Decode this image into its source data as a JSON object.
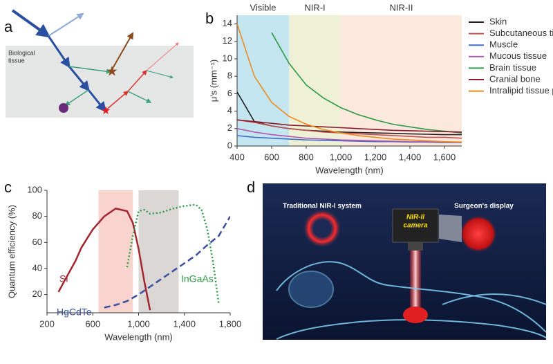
{
  "panel_a": {
    "label": "a",
    "tissue_text": [
      "Biological",
      "tissue"
    ]
  },
  "panel_d": {
    "label": "d",
    "left_text": "Traditional NIR-I system",
    "right_text": "Surgeon's display",
    "camera_text": [
      "NIR-II",
      "camera"
    ]
  },
  "chart_data": [
    {
      "type": "line",
      "panel": "b",
      "x_label": "Wavelength (nm)",
      "y_label": "μ′s (mm⁻¹)",
      "xlim": [
        400,
        1700
      ],
      "ylim": [
        0,
        15
      ],
      "xticks": [
        400,
        600,
        800,
        {
          "value": 1000,
          "label": "1,000"
        },
        {
          "value": 1200,
          "label": "1,200"
        },
        {
          "value": 1400,
          "label": "1,400"
        },
        {
          "value": 1600,
          "label": "1,600"
        }
      ],
      "yticks": [
        0,
        2,
        4,
        6,
        8,
        10,
        12,
        14
      ],
      "legend": "outside-right",
      "regions": [
        {
          "label": "Visible",
          "range": [
            400,
            700
          ],
          "color": "#c4e6f1"
        },
        {
          "label": "NIR-I",
          "range": [
            700,
            1000
          ],
          "color": "#eef1d6"
        },
        {
          "label": "NIR-II",
          "range": [
            1000,
            1700
          ],
          "color": "#fbe9de"
        }
      ],
      "x": [
        400,
        500,
        600,
        700,
        800,
        900,
        1000,
        1100,
        1200,
        1300,
        1400,
        1500,
        1600,
        1700
      ],
      "series": [
        {
          "name": "Skin",
          "color": "#231f20",
          "values": [
            6.2,
            2.8,
            2.3,
            2.0,
            1.8,
            1.7,
            1.6,
            1.55,
            1.5,
            1.45,
            1.4,
            1.35,
            1.3,
            1.3
          ]
        },
        {
          "name": "Subcutaneous tissue",
          "color": "#c0504d",
          "values": [
            3.0,
            2.7,
            2.3,
            2.0,
            1.8,
            1.6,
            1.5,
            1.4,
            1.3,
            1.2,
            1.1,
            1.0,
            1.0,
            0.9
          ]
        },
        {
          "name": "Muscle",
          "color": "#3f6fc0",
          "values": [
            1.2,
            1.0,
            0.9,
            0.8,
            0.7,
            0.65,
            0.6,
            0.55,
            0.5,
            0.5,
            0.45,
            0.45,
            0.4,
            0.4
          ]
        },
        {
          "name": "Mucous tissue",
          "color": "#b05ab0",
          "values": [
            2.0,
            1.6,
            1.3,
            1.1,
            0.9,
            0.8,
            0.7,
            0.65,
            0.6,
            0.55,
            0.5,
            0.5,
            0.45,
            0.45
          ]
        },
        {
          "name": "Brain tissue",
          "color": "#2e9a48",
          "values": [
            null,
            null,
            13,
            9.5,
            7,
            5.5,
            4.4,
            3.6,
            3.0,
            2.5,
            2.2,
            1.9,
            1.7,
            1.5
          ]
        },
        {
          "name": "Cranial bone",
          "color": "#8b1a2b",
          "values": [
            3.0,
            2.8,
            2.6,
            2.4,
            2.3,
            2.2,
            2.1,
            2.0,
            1.9,
            1.8,
            1.75,
            1.7,
            1.65,
            1.6
          ]
        },
        {
          "name": "Intralipid tissue phantom",
          "color": "#ef8a1c",
          "values": [
            14,
            8.0,
            5.0,
            3.4,
            2.5,
            1.9,
            1.5,
            1.2,
            1.0,
            0.8,
            0.7,
            0.6,
            0.5,
            0.45
          ]
        }
      ]
    },
    {
      "type": "line",
      "panel": "c",
      "x_label": "Wavelength (nm)",
      "y_label": "Quantum efficiency (%)",
      "xlim": [
        200,
        1800
      ],
      "ylim": [
        6,
        100
      ],
      "xticks": [
        200,
        600,
        {
          "value": 1000,
          "label": "1,000"
        },
        {
          "value": 1400,
          "label": "1,400"
        },
        {
          "value": 1800,
          "label": "1,800"
        }
      ],
      "yticks": [
        20,
        40,
        60,
        80,
        100
      ],
      "legend": "inline",
      "regions": [
        {
          "range": [
            650,
            950
          ],
          "color": "#f9d4cf"
        },
        {
          "range": [
            1000,
            1350
          ],
          "color": "#dad7d5"
        }
      ],
      "series": [
        {
          "name": "Si",
          "color": "#a3262e",
          "dash": "solid",
          "x": [
            300,
            350,
            400,
            450,
            500,
            600,
            700,
            800,
            900,
            950,
            1000,
            1050,
            1100
          ],
          "values": [
            22,
            30,
            38,
            46,
            56,
            70,
            80,
            86,
            84,
            75,
            55,
            30,
            8
          ]
        },
        {
          "name": "InGaAs",
          "color": "#2e9a48",
          "dash": "dotted",
          "x": [
            900,
            950,
            1000,
            1050,
            1100,
            1200,
            1300,
            1400,
            1500,
            1550,
            1600,
            1650,
            1700
          ],
          "values": [
            41,
            65,
            84,
            85,
            82,
            83,
            86,
            88,
            89,
            85,
            70,
            45,
            13
          ]
        },
        {
          "name": "HgCdTe",
          "color": "#3a4f9e",
          "dash": "dashed",
          "x": [
            700,
            800,
            900,
            1000,
            1100,
            1200,
            1300,
            1400,
            1500,
            1600,
            1700,
            1800
          ],
          "values": [
            10,
            12,
            15,
            20,
            26,
            32,
            38,
            44,
            50,
            58,
            65,
            80
          ]
        }
      ]
    }
  ]
}
